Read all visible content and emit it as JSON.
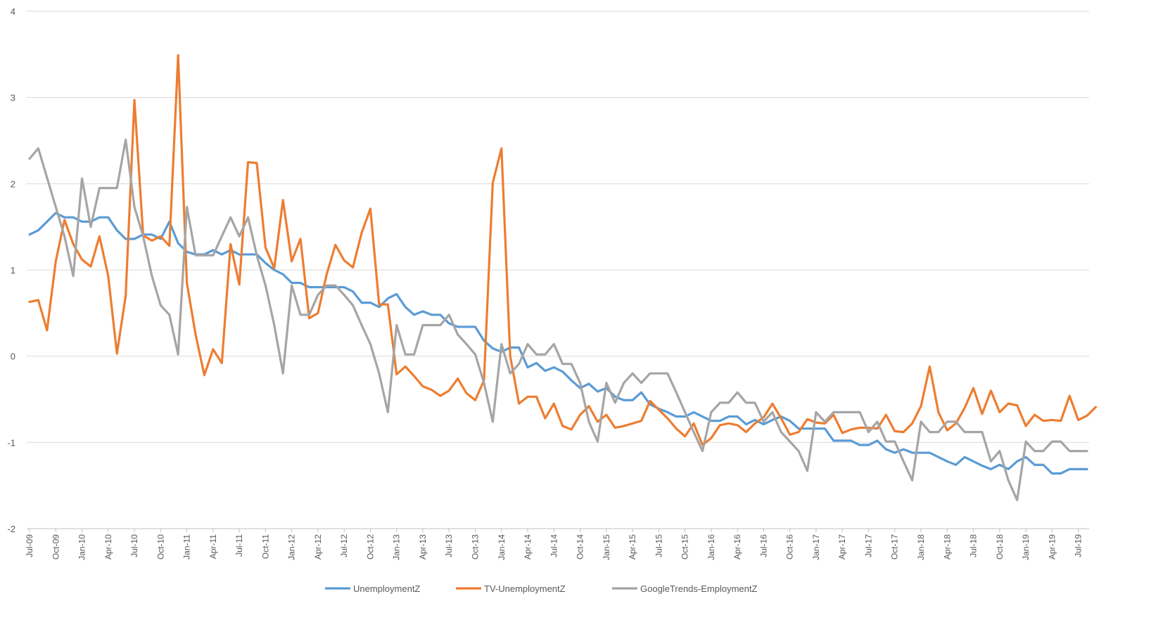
{
  "chart_data": {
    "type": "line",
    "title": "",
    "xlabel": "",
    "ylabel": "",
    "ylim": [
      -2,
      4
    ],
    "yticks": [
      -2,
      -1,
      0,
      1,
      2,
      3,
      4
    ],
    "grid": "horizontal",
    "legend": "bottom",
    "start_month": "2009-07",
    "x_tick_labels": [
      "Jul-09",
      "Oct-09",
      "Jan-10",
      "Apr-10",
      "Jul-10",
      "Oct-10",
      "Jan-11",
      "Apr-11",
      "Jul-11",
      "Oct-11",
      "Jan-12",
      "Apr-12",
      "Jul-12",
      "Oct-12",
      "Jan-13",
      "Apr-13",
      "Jul-13",
      "Oct-13",
      "Jan-14",
      "Apr-14",
      "Jul-14",
      "Oct-14",
      "Jan-15",
      "Apr-15",
      "Jul-15",
      "Oct-15",
      "Jan-16",
      "Apr-16",
      "Jul-16",
      "Oct-16",
      "Jan-17",
      "Apr-17",
      "Jul-17",
      "Oct-17",
      "Jan-18",
      "Apr-18",
      "Jul-18",
      "Oct-18",
      "Jan-19",
      "Apr-19",
      "Jul-19"
    ],
    "series": [
      {
        "name": "UnemploymentZ",
        "color": "#5B9BD5",
        "values": [
          1.41,
          1.46,
          1.56,
          1.66,
          1.61,
          1.61,
          1.56,
          1.56,
          1.61,
          1.61,
          1.46,
          1.36,
          1.36,
          1.41,
          1.41,
          1.36,
          1.56,
          1.31,
          1.21,
          1.18,
          1.18,
          1.23,
          1.18,
          1.23,
          1.18,
          1.18,
          1.18,
          1.08,
          1.0,
          0.95,
          0.85,
          0.85,
          0.8,
          0.8,
          0.8,
          0.8,
          0.8,
          0.75,
          0.62,
          0.62,
          0.57,
          0.67,
          0.72,
          0.57,
          0.48,
          0.52,
          0.48,
          0.48,
          0.38,
          0.34,
          0.34,
          0.34,
          0.18,
          0.09,
          0.05,
          0.1,
          0.1,
          -0.13,
          -0.08,
          -0.17,
          -0.13,
          -0.18,
          -0.28,
          -0.37,
          -0.32,
          -0.41,
          -0.37,
          -0.47,
          -0.51,
          -0.51,
          -0.42,
          -0.56,
          -0.61,
          -0.65,
          -0.7,
          -0.7,
          -0.65,
          -0.7,
          -0.75,
          -0.75,
          -0.7,
          -0.7,
          -0.79,
          -0.74,
          -0.79,
          -0.74,
          -0.7,
          -0.75,
          -0.84,
          -0.84,
          -0.84,
          -0.84,
          -0.98,
          -0.98,
          -0.98,
          -1.03,
          -1.03,
          -0.98,
          -1.08,
          -1.12,
          -1.08,
          -1.12,
          -1.12,
          -1.12,
          -1.17,
          -1.22,
          -1.26,
          -1.17,
          -1.22,
          -1.27,
          -1.31,
          -1.26,
          -1.31,
          -1.22,
          -1.17,
          -1.26,
          -1.26,
          -1.36,
          -1.36,
          -1.31,
          -1.31,
          -1.31
        ]
      },
      {
        "name": "TV-UnemploymentZ",
        "color": "#ED7D31",
        "values": [
          0.63,
          0.65,
          0.3,
          1.1,
          1.58,
          1.3,
          1.12,
          1.04,
          1.39,
          0.93,
          0.03,
          0.7,
          2.97,
          1.4,
          1.34,
          1.39,
          1.28,
          3.49,
          0.85,
          0.25,
          -0.22,
          0.08,
          -0.08,
          1.3,
          0.83,
          2.25,
          2.24,
          1.26,
          1.02,
          1.81,
          1.1,
          1.36,
          0.44,
          0.5,
          0.95,
          1.29,
          1.11,
          1.03,
          1.43,
          1.71,
          0.6,
          0.6,
          -0.21,
          -0.12,
          -0.23,
          -0.35,
          -0.39,
          -0.46,
          -0.4,
          -0.26,
          -0.43,
          -0.51,
          -0.28,
          2.01,
          2.41,
          0.0,
          -0.55,
          -0.47,
          -0.47,
          -0.72,
          -0.55,
          -0.81,
          -0.85,
          -0.68,
          -0.58,
          -0.76,
          -0.68,
          -0.83,
          -0.81,
          -0.78,
          -0.75,
          -0.52,
          -0.62,
          -0.72,
          -0.84,
          -0.93,
          -0.78,
          -1.03,
          -0.95,
          -0.8,
          -0.78,
          -0.8,
          -0.88,
          -0.78,
          -0.71,
          -0.55,
          -0.72,
          -0.91,
          -0.88,
          -0.73,
          -0.77,
          -0.78,
          -0.68,
          -0.89,
          -0.85,
          -0.83,
          -0.83,
          -0.84,
          -0.68,
          -0.87,
          -0.88,
          -0.78,
          -0.58,
          -0.12,
          -0.65,
          -0.86,
          -0.78,
          -0.6,
          -0.37,
          -0.67,
          -0.4,
          -0.65,
          -0.55,
          -0.57,
          -0.81,
          -0.68,
          -0.75,
          -0.74,
          -0.75,
          -0.46,
          -0.74,
          -0.69,
          -0.59
        ]
      },
      {
        "name": "GoogleTrends-EmploymentZ",
        "color": "#A5A5A5",
        "values": [
          2.29,
          2.41,
          2.07,
          1.73,
          1.39,
          0.93,
          2.06,
          1.5,
          1.95,
          1.95,
          1.95,
          2.51,
          1.73,
          1.39,
          0.93,
          0.59,
          0.48,
          0.02,
          1.73,
          1.17,
          1.17,
          1.17,
          1.39,
          1.61,
          1.39,
          1.61,
          1.17,
          0.82,
          0.36,
          -0.2,
          0.82,
          0.48,
          0.48,
          0.71,
          0.82,
          0.82,
          0.71,
          0.59,
          0.36,
          0.14,
          -0.2,
          -0.65,
          0.36,
          0.02,
          0.02,
          0.36,
          0.36,
          0.36,
          0.48,
          0.25,
          0.14,
          0.02,
          -0.31,
          -0.76,
          0.14,
          -0.2,
          -0.09,
          0.14,
          0.02,
          0.02,
          0.14,
          -0.09,
          -0.09,
          -0.31,
          -0.76,
          -0.99,
          -0.31,
          -0.54,
          -0.31,
          -0.2,
          -0.31,
          -0.2,
          -0.2,
          -0.2,
          -0.42,
          -0.65,
          -0.88,
          -1.1,
          -0.65,
          -0.54,
          -0.54,
          -0.42,
          -0.54,
          -0.54,
          -0.76,
          -0.65,
          -0.88,
          -0.99,
          -1.1,
          -1.33,
          -0.65,
          -0.76,
          -0.65,
          -0.65,
          -0.65,
          -0.65,
          -0.88,
          -0.76,
          -0.99,
          -0.99,
          -1.22,
          -1.44,
          -0.76,
          -0.88,
          -0.88,
          -0.76,
          -0.76,
          -0.88,
          -0.88,
          -0.88,
          -1.22,
          -1.1,
          -1.44,
          -1.67,
          -0.99,
          -1.1,
          -1.1,
          -0.99,
          -0.99,
          -1.1,
          -1.1,
          -1.1
        ]
      }
    ]
  }
}
